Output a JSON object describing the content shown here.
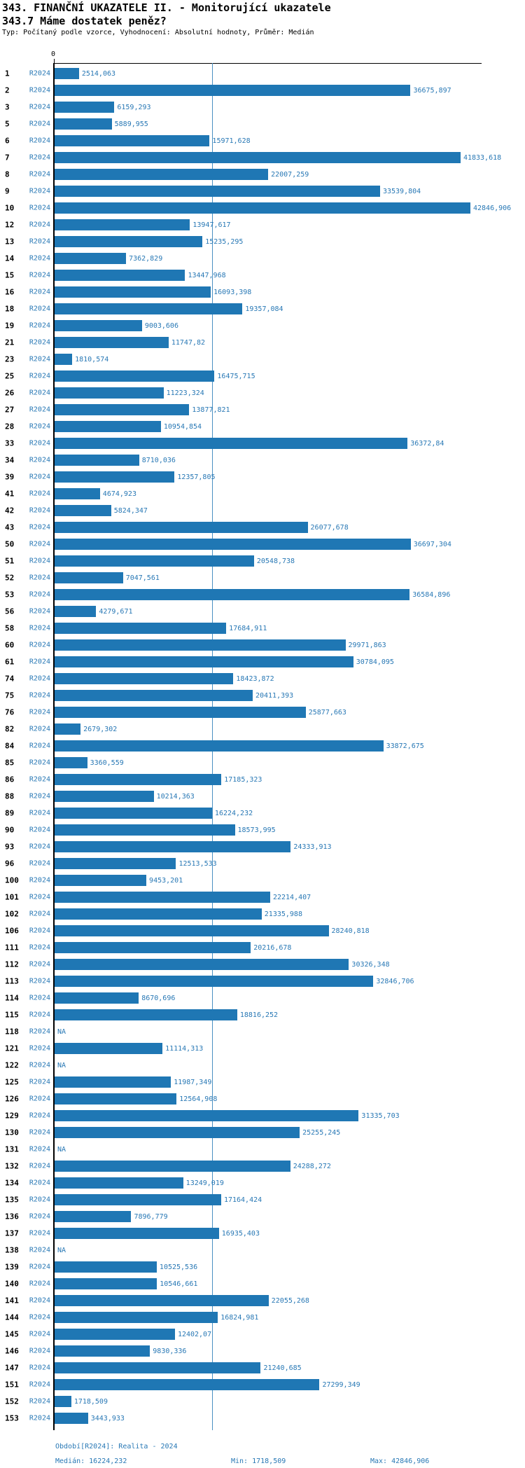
{
  "title": "343. FINANČNÍ UKAZATELE II. - Monitorující ukazatele",
  "subtitle": "343.7 Máme dostatek peněz?",
  "meta": "Typ: Počítaný podle vzorce, Vyhodnocení: Absolutní hodnoty, Průměr: Medián",
  "colors": {
    "bar": "#1f77b4",
    "label_text": "#2878b5",
    "axis": "#000000",
    "median_line": "#4a90c2"
  },
  "chart_data": {
    "type": "bar",
    "orientation": "horizontal",
    "series_label": "R2024",
    "axis_zero_label": "0",
    "x_axis_range": [
      0,
      44000
    ],
    "median_value": 16224.232,
    "median_label": "16224,232",
    "min_value": 1718.509,
    "max_value": 42846.906,
    "rows": [
      {
        "id": "1",
        "label": "2514,063",
        "value": 2514.063
      },
      {
        "id": "2",
        "label": "36675,897",
        "value": 36675.897
      },
      {
        "id": "3",
        "label": "6159,293",
        "value": 6159.293
      },
      {
        "id": "5",
        "label": "5889,955",
        "value": 5889.955
      },
      {
        "id": "6",
        "label": "15971,628",
        "value": 15971.628
      },
      {
        "id": "7",
        "label": "41833,618",
        "value": 41833.618
      },
      {
        "id": "8",
        "label": "22007,259",
        "value": 22007.259
      },
      {
        "id": "9",
        "label": "33539,804",
        "value": 33539.804
      },
      {
        "id": "10",
        "label": "42846,906",
        "value": 42846.906
      },
      {
        "id": "12",
        "label": "13947,617",
        "value": 13947.617
      },
      {
        "id": "13",
        "label": "15235,295",
        "value": 15235.295
      },
      {
        "id": "14",
        "label": "7362,829",
        "value": 7362.829
      },
      {
        "id": "15",
        "label": "13447,968",
        "value": 13447.968
      },
      {
        "id": "16",
        "label": "16093,398",
        "value": 16093.398
      },
      {
        "id": "18",
        "label": "19357,084",
        "value": 19357.084
      },
      {
        "id": "19",
        "label": "9003,606",
        "value": 9003.606
      },
      {
        "id": "21",
        "label": "11747,82",
        "value": 11747.82
      },
      {
        "id": "23",
        "label": "1810,574",
        "value": 1810.574
      },
      {
        "id": "25",
        "label": "16475,715",
        "value": 16475.715
      },
      {
        "id": "26",
        "label": "11223,324",
        "value": 11223.324
      },
      {
        "id": "27",
        "label": "13877,821",
        "value": 13877.821
      },
      {
        "id": "28",
        "label": "10954,854",
        "value": 10954.854
      },
      {
        "id": "33",
        "label": "36372,84",
        "value": 36372.84
      },
      {
        "id": "34",
        "label": "8710,036",
        "value": 8710.036
      },
      {
        "id": "39",
        "label": "12357,805",
        "value": 12357.805
      },
      {
        "id": "41",
        "label": "4674,923",
        "value": 4674.923
      },
      {
        "id": "42",
        "label": "5824,347",
        "value": 5824.347
      },
      {
        "id": "43",
        "label": "26077,678",
        "value": 26077.678
      },
      {
        "id": "50",
        "label": "36697,304",
        "value": 36697.304
      },
      {
        "id": "51",
        "label": "20548,738",
        "value": 20548.738
      },
      {
        "id": "52",
        "label": "7047,561",
        "value": 7047.561
      },
      {
        "id": "53",
        "label": "36584,896",
        "value": 36584.896
      },
      {
        "id": "56",
        "label": "4279,671",
        "value": 4279.671
      },
      {
        "id": "58",
        "label": "17684,911",
        "value": 17684.911
      },
      {
        "id": "60",
        "label": "29971,863",
        "value": 29971.863
      },
      {
        "id": "61",
        "label": "30784,095",
        "value": 30784.095
      },
      {
        "id": "74",
        "label": "18423,872",
        "value": 18423.872
      },
      {
        "id": "75",
        "label": "20411,393",
        "value": 20411.393
      },
      {
        "id": "76",
        "label": "25877,663",
        "value": 25877.663
      },
      {
        "id": "82",
        "label": "2679,302",
        "value": 2679.302
      },
      {
        "id": "84",
        "label": "33872,675",
        "value": 33872.675
      },
      {
        "id": "85",
        "label": "3360,559",
        "value": 3360.559
      },
      {
        "id": "86",
        "label": "17185,323",
        "value": 17185.323
      },
      {
        "id": "88",
        "label": "10214,363",
        "value": 10214.363
      },
      {
        "id": "89",
        "label": "16224,232",
        "value": 16224.232
      },
      {
        "id": "90",
        "label": "18573,995",
        "value": 18573.995
      },
      {
        "id": "93",
        "label": "24333,913",
        "value": 24333.913
      },
      {
        "id": "96",
        "label": "12513,533",
        "value": 12513.533
      },
      {
        "id": "100",
        "label": "9453,201",
        "value": 9453.201
      },
      {
        "id": "101",
        "label": "22214,407",
        "value": 22214.407
      },
      {
        "id": "102",
        "label": "21335,988",
        "value": 21335.988
      },
      {
        "id": "106",
        "label": "28240,818",
        "value": 28240.818
      },
      {
        "id": "111",
        "label": "20216,678",
        "value": 20216.678
      },
      {
        "id": "112",
        "label": "30326,348",
        "value": 30326.348
      },
      {
        "id": "113",
        "label": "32846,706",
        "value": 32846.706
      },
      {
        "id": "114",
        "label": "8670,696",
        "value": 8670.696
      },
      {
        "id": "115",
        "label": "18816,252",
        "value": 18816.252
      },
      {
        "id": "118",
        "label": "NA",
        "value": null
      },
      {
        "id": "121",
        "label": "11114,313",
        "value": 11114.313
      },
      {
        "id": "122",
        "label": "NA",
        "value": null
      },
      {
        "id": "125",
        "label": "11987,349",
        "value": 11987.349
      },
      {
        "id": "126",
        "label": "12564,908",
        "value": 12564.908
      },
      {
        "id": "129",
        "label": "31335,703",
        "value": 31335.703
      },
      {
        "id": "130",
        "label": "25255,245",
        "value": 25255.245
      },
      {
        "id": "131",
        "label": "NA",
        "value": null
      },
      {
        "id": "132",
        "label": "24288,272",
        "value": 24288.272
      },
      {
        "id": "134",
        "label": "13249,019",
        "value": 13249.019
      },
      {
        "id": "135",
        "label": "17164,424",
        "value": 17164.424
      },
      {
        "id": "136",
        "label": "7896,779",
        "value": 7896.779
      },
      {
        "id": "137",
        "label": "16935,403",
        "value": 16935.403
      },
      {
        "id": "138",
        "label": "NA",
        "value": null
      },
      {
        "id": "139",
        "label": "10525,536",
        "value": 10525.536
      },
      {
        "id": "140",
        "label": "10546,661",
        "value": 10546.661
      },
      {
        "id": "141",
        "label": "22055,268",
        "value": 22055.268
      },
      {
        "id": "144",
        "label": "16824,981",
        "value": 16824.981
      },
      {
        "id": "145",
        "label": "12402,07",
        "value": 12402.07
      },
      {
        "id": "146",
        "label": "9830,336",
        "value": 9830.336
      },
      {
        "id": "147",
        "label": "21240,685",
        "value": 21240.685
      },
      {
        "id": "151",
        "label": "27299,349",
        "value": 27299.349
      },
      {
        "id": "152",
        "label": "1718,509",
        "value": 1718.509
      },
      {
        "id": "153",
        "label": "3443,933",
        "value": 3443.933
      }
    ]
  },
  "footer": {
    "period": "Období[R2024]: Realita - 2024",
    "median": "Medián: 16224,232",
    "min": "Min: 1718,509",
    "max": "Max: 42846,906"
  }
}
